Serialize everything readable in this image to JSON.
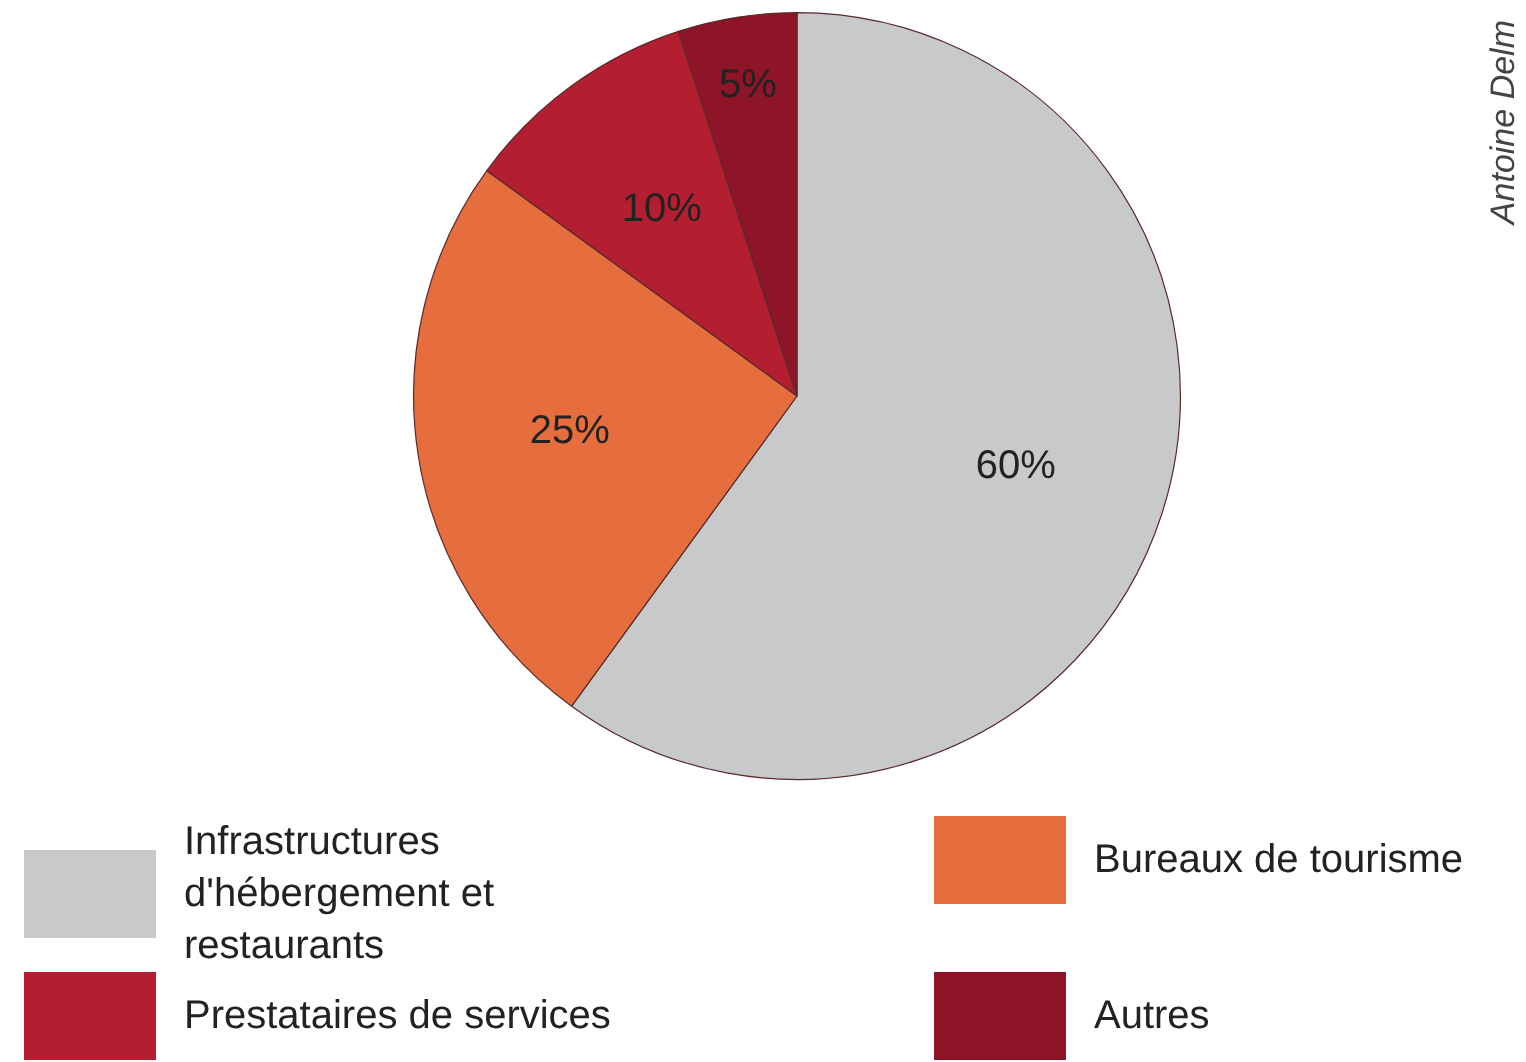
{
  "chart_data": {
    "type": "pie",
    "categories": [
      "Infrastructures d'hébergement et restaurants",
      "Bureaux de tourisme",
      "Prestataires de services",
      "Autres"
    ],
    "values": [
      60,
      25,
      10,
      5
    ],
    "colors": [
      "#c8c9cb",
      "#e66d3d",
      "#b31f30",
      "#8e1428"
    ],
    "value_labels": [
      "60%",
      "25%",
      "10%",
      "5%"
    ],
    "legend": "bottom",
    "annotations": [
      "Antoine Delm"
    ]
  }
}
